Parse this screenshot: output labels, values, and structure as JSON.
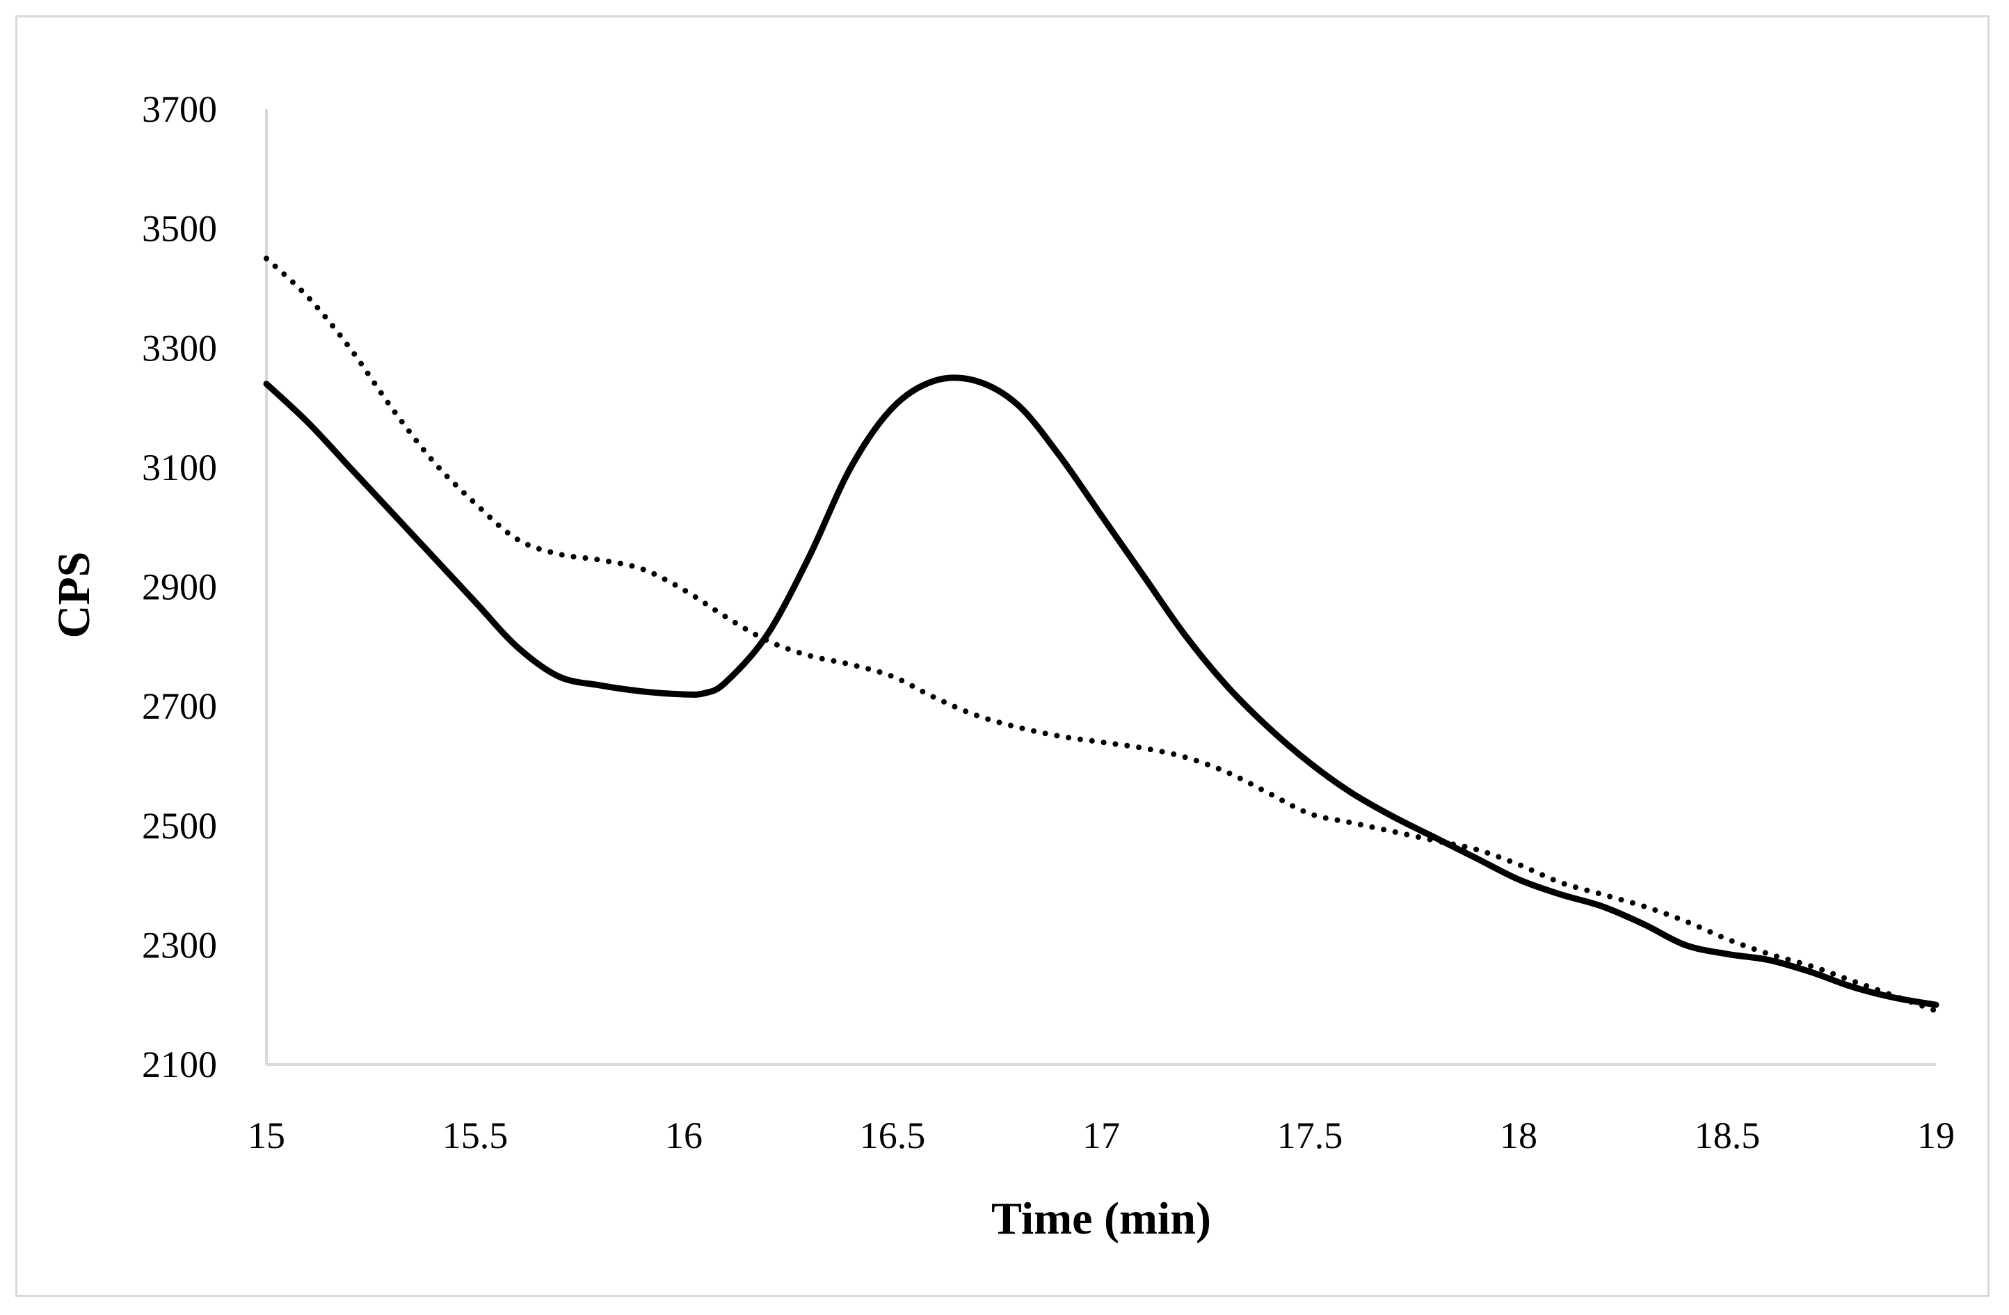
{
  "chart_data": {
    "type": "line",
    "title": "",
    "xlabel": "Time (min)",
    "ylabel": "CPS",
    "xlim": [
      15,
      19
    ],
    "ylim": [
      2100,
      3700
    ],
    "xticks": [
      15,
      15.5,
      16,
      16.5,
      17,
      17.5,
      18,
      18.5,
      19
    ],
    "yticks": [
      2100,
      2300,
      2500,
      2700,
      2900,
      3100,
      3300,
      3500,
      3700
    ],
    "grid": false,
    "legend": "none",
    "series": [
      {
        "name": "solid",
        "style": "solid",
        "color": "#000000",
        "x": [
          15,
          15.1,
          15.2,
          15.3,
          15.4,
          15.5,
          15.6,
          15.7,
          15.8,
          15.9,
          16.0,
          16.05,
          16.1,
          16.2,
          16.3,
          16.4,
          16.5,
          16.6,
          16.7,
          16.8,
          16.9,
          17.0,
          17.1,
          17.2,
          17.3,
          17.4,
          17.5,
          17.6,
          17.7,
          17.8,
          17.9,
          18.0,
          18.1,
          18.2,
          18.3,
          18.4,
          18.5,
          18.6,
          18.7,
          18.8,
          18.9,
          19.0
        ],
        "y": [
          3240,
          3175,
          3100,
          3025,
          2950,
          2875,
          2800,
          2750,
          2735,
          2725,
          2720,
          2722,
          2740,
          2820,
          2950,
          3100,
          3200,
          3245,
          3245,
          3205,
          3120,
          3020,
          2920,
          2820,
          2735,
          2665,
          2605,
          2555,
          2515,
          2480,
          2445,
          2410,
          2385,
          2365,
          2335,
          2300,
          2285,
          2275,
          2255,
          2230,
          2212,
          2200
        ]
      },
      {
        "name": "dotted",
        "style": "dotted",
        "color": "#000000",
        "x": [
          15,
          15.1,
          15.2,
          15.3,
          15.4,
          15.5,
          15.6,
          15.7,
          15.8,
          15.9,
          16.0,
          16.1,
          16.2,
          16.3,
          16.4,
          16.5,
          16.6,
          16.7,
          16.8,
          16.9,
          17.0,
          17.1,
          17.2,
          17.3,
          17.4,
          17.5,
          17.6,
          17.7,
          17.8,
          17.9,
          18.0,
          18.1,
          18.2,
          18.3,
          18.4,
          18.5,
          18.6,
          18.7,
          18.8,
          18.9,
          19.0
        ],
        "y": [
          3450,
          3385,
          3300,
          3200,
          3110,
          3040,
          2980,
          2955,
          2945,
          2930,
          2895,
          2850,
          2810,
          2785,
          2770,
          2750,
          2715,
          2685,
          2665,
          2650,
          2640,
          2630,
          2615,
          2590,
          2555,
          2520,
          2505,
          2490,
          2475,
          2460,
          2435,
          2405,
          2385,
          2365,
          2340,
          2310,
          2285,
          2265,
          2240,
          2215,
          2190
        ]
      }
    ]
  }
}
